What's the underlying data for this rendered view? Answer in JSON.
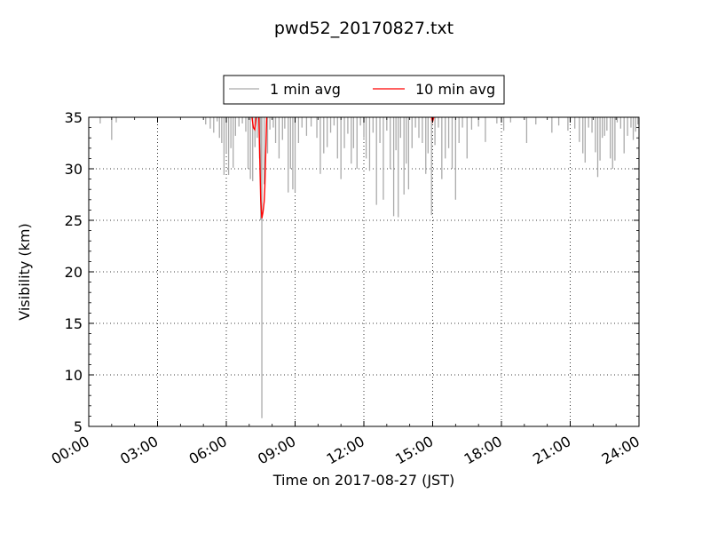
{
  "chart_data": {
    "type": "line",
    "title": "pwd52_20170827.txt",
    "xlabel": "Time on 2017-08-27 (JST)",
    "ylabel": "Visibility (km)",
    "xlim": [
      0,
      24
    ],
    "ylim": [
      5,
      35
    ],
    "x_ticks": [
      0,
      3,
      6,
      9,
      12,
      15,
      18,
      21,
      24
    ],
    "x_tick_labels": [
      "00:00",
      "03:00",
      "06:00",
      "09:00",
      "12:00",
      "15:00",
      "18:00",
      "21:00",
      "24:00"
    ],
    "y_ticks": [
      5,
      10,
      15,
      20,
      25,
      30,
      35
    ],
    "y_tick_labels": [
      "5",
      "10",
      "15",
      "20",
      "25",
      "30",
      "35"
    ],
    "grid": true,
    "legend_position": "top-center-outside",
    "series": [
      {
        "name": "1 min avg",
        "color": "#aaaaaa",
        "style": "dips",
        "points": [
          [
            0.5,
            34.4
          ],
          [
            1.0,
            32.8
          ],
          [
            1.2,
            34.5
          ],
          [
            5.1,
            34.3
          ],
          [
            5.3,
            33.9
          ],
          [
            5.45,
            33.5
          ],
          [
            5.6,
            34.6
          ],
          [
            5.7,
            33.0
          ],
          [
            5.8,
            32.5
          ],
          [
            5.9,
            29.4
          ],
          [
            6.0,
            31.5
          ],
          [
            6.1,
            29.4
          ],
          [
            6.2,
            32.0
          ],
          [
            6.3,
            30.1
          ],
          [
            6.4,
            33.2
          ],
          [
            6.55,
            34.1
          ],
          [
            6.7,
            34.4
          ],
          [
            6.85,
            33.6
          ],
          [
            6.95,
            30.0
          ],
          [
            7.05,
            29.0
          ],
          [
            7.15,
            28.8
          ],
          [
            7.25,
            32.1
          ],
          [
            7.35,
            33.0
          ],
          [
            7.45,
            31.0
          ],
          [
            7.5,
            25.0
          ],
          [
            7.55,
            5.8
          ],
          [
            7.65,
            28.5
          ],
          [
            7.8,
            31.5
          ],
          [
            7.9,
            33.8
          ],
          [
            8.05,
            34.0
          ],
          [
            8.15,
            32.5
          ],
          [
            8.3,
            31.0
          ],
          [
            8.45,
            32.8
          ],
          [
            8.55,
            33.9
          ],
          [
            8.7,
            27.7
          ],
          [
            8.8,
            30.0
          ],
          [
            8.9,
            28.0
          ],
          [
            9.0,
            27.7
          ],
          [
            9.15,
            32.5
          ],
          [
            9.3,
            34.0
          ],
          [
            9.5,
            33.2
          ],
          [
            9.7,
            34.1
          ],
          [
            9.95,
            33.0
          ],
          [
            10.1,
            29.5
          ],
          [
            10.25,
            31.5
          ],
          [
            10.4,
            32.1
          ],
          [
            10.55,
            33.5
          ],
          [
            10.7,
            34.2
          ],
          [
            10.85,
            31.0
          ],
          [
            11.0,
            29.0
          ],
          [
            11.15,
            32.0
          ],
          [
            11.3,
            33.4
          ],
          [
            11.45,
            30.5
          ],
          [
            11.55,
            32.0
          ],
          [
            11.7,
            30.0
          ],
          [
            11.85,
            34.2
          ],
          [
            12.0,
            33.0
          ],
          [
            12.1,
            31.0
          ],
          [
            12.25,
            29.8
          ],
          [
            12.4,
            33.5
          ],
          [
            12.55,
            26.5
          ],
          [
            12.7,
            32.5
          ],
          [
            12.85,
            27.0
          ],
          [
            13.0,
            33.7
          ],
          [
            13.15,
            30.0
          ],
          [
            13.3,
            25.4
          ],
          [
            13.4,
            31.8
          ],
          [
            13.5,
            25.3
          ],
          [
            13.6,
            33.0
          ],
          [
            13.75,
            27.5
          ],
          [
            13.85,
            30.5
          ],
          [
            13.95,
            28.0
          ],
          [
            14.1,
            32.0
          ],
          [
            14.25,
            34.0
          ],
          [
            14.4,
            33.0
          ],
          [
            14.55,
            32.5
          ],
          [
            14.7,
            29.5
          ],
          [
            14.8,
            31.5
          ],
          [
            14.95,
            25.5
          ],
          [
            15.1,
            32.3
          ],
          [
            15.25,
            34.0
          ],
          [
            15.4,
            29.0
          ],
          [
            15.55,
            31.0
          ],
          [
            15.7,
            32.0
          ],
          [
            15.85,
            30.0
          ],
          [
            16.0,
            27.0
          ],
          [
            16.15,
            32.5
          ],
          [
            16.3,
            34.0
          ],
          [
            16.5,
            31.0
          ],
          [
            16.7,
            33.8
          ],
          [
            17.0,
            34.1
          ],
          [
            17.3,
            32.6
          ],
          [
            17.8,
            34.4
          ],
          [
            18.1,
            33.7
          ],
          [
            18.4,
            34.5
          ],
          [
            19.1,
            32.5
          ],
          [
            19.5,
            34.3
          ],
          [
            20.2,
            33.5
          ],
          [
            20.5,
            34.2
          ],
          [
            20.9,
            33.7
          ],
          [
            21.0,
            34.5
          ],
          [
            21.2,
            33.9
          ],
          [
            21.4,
            32.6
          ],
          [
            21.55,
            31.5
          ],
          [
            21.65,
            30.6
          ],
          [
            21.8,
            34.0
          ],
          [
            21.95,
            33.5
          ],
          [
            22.1,
            31.6
          ],
          [
            22.2,
            29.2
          ],
          [
            22.3,
            30.8
          ],
          [
            22.4,
            33.0
          ],
          [
            22.5,
            33.2
          ],
          [
            22.6,
            33.7
          ],
          [
            22.75,
            31.0
          ],
          [
            22.85,
            30.0
          ],
          [
            22.95,
            30.8
          ],
          [
            23.05,
            34.5
          ],
          [
            23.2,
            33.9
          ],
          [
            23.35,
            31.5
          ],
          [
            23.5,
            33.2
          ],
          [
            23.65,
            34.0
          ],
          [
            23.75,
            32.8
          ],
          [
            23.85,
            33.6
          ],
          [
            23.95,
            34.3
          ]
        ]
      },
      {
        "name": "10 min avg",
        "color": "#ff0000",
        "style": "line",
        "segments": [
          [
            [
              7.12,
              35
            ],
            [
              7.18,
              34.0
            ],
            [
              7.24,
              33.8
            ],
            [
              7.3,
              35
            ]
          ],
          [
            [
              7.42,
              35
            ],
            [
              7.46,
              31.0
            ],
            [
              7.5,
              27.0
            ],
            [
              7.55,
              25.2
            ],
            [
              7.6,
              25.8
            ],
            [
              7.65,
              26.8
            ],
            [
              7.68,
              28.2
            ],
            [
              7.72,
              31.5
            ],
            [
              7.76,
              35
            ]
          ],
          [
            [
              14.95,
              35
            ],
            [
              15.0,
              34.6
            ],
            [
              15.05,
              35
            ]
          ]
        ]
      }
    ]
  }
}
